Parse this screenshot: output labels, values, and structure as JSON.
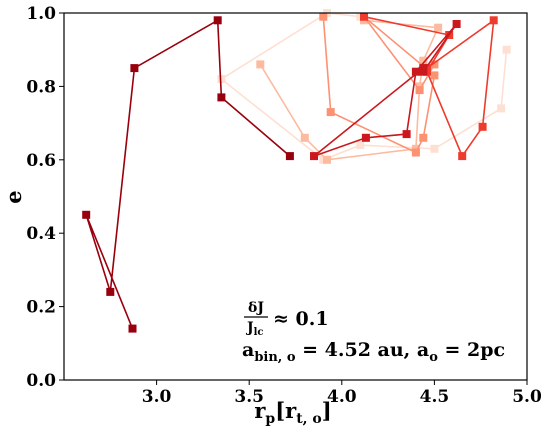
{
  "chart_data": {
    "type": "line",
    "xlabel": "r_p[r_t, o]",
    "ylabel": "e",
    "xlim": [
      2.5,
      5.0
    ],
    "ylim": [
      0.0,
      1.0
    ],
    "x_ticks": [
      "3.0",
      "3.5",
      "4.0",
      "4.5",
      "5.0"
    ],
    "x_tick_values": [
      3.0,
      3.5,
      4.0,
      4.5,
      5.0
    ],
    "y_ticks": [
      "0.0",
      "0.2",
      "0.4",
      "0.6",
      "0.8",
      "1.0"
    ],
    "y_tick_values": [
      0.0,
      0.2,
      0.4,
      0.6,
      0.8,
      1.0
    ],
    "grid": false,
    "marker": "square",
    "annotations": {
      "ratio_numerator": "δJ",
      "ratio_denominator": "J",
      "ratio_denominator_sub": "lc",
      "ratio_rest": "≈ 0.1",
      "a_bin_main": "a",
      "a_bin_sub": "bin, o",
      "a_bin_value": " = 4.52 au, a",
      "a_o_sub": "o",
      "a_o_value": " = 2pc"
    },
    "series": [
      {
        "color": "#fee0d2",
        "x": [
          4.89,
          4.86,
          4.5,
          4.1,
          3.9,
          3.35,
          3.92,
          4.1
        ],
        "y": [
          0.9,
          0.74,
          0.63,
          0.64,
          0.6,
          0.82,
          1.0,
          0.99
        ]
      },
      {
        "color": "#fcbba1",
        "x": [
          3.56,
          3.8,
          3.92,
          4.4,
          4.42,
          4.44,
          4.52,
          4.12
        ],
        "y": [
          0.86,
          0.66,
          0.6,
          0.63,
          0.8,
          0.87,
          0.96,
          0.98
        ]
      },
      {
        "color": "#fc9272",
        "x": [
          3.9,
          3.94,
          4.4,
          4.44,
          4.5,
          4.12,
          4.42,
          4.5
        ],
        "y": [
          0.99,
          0.73,
          0.62,
          0.66,
          0.83,
          0.99,
          0.79,
          0.86
        ]
      },
      {
        "color": "#ef3b2c",
        "x": [
          4.12,
          4.58,
          4.46,
          4.65,
          4.76,
          4.82,
          4.46
        ],
        "y": [
          0.99,
          0.94,
          0.84,
          0.61,
          0.69,
          0.98,
          0.85
        ]
      },
      {
        "color": "#cb181d",
        "x": [
          4.44,
          4.62,
          4.4,
          4.35,
          4.13,
          3.85,
          4.44
        ],
        "y": [
          0.84,
          0.97,
          0.84,
          0.67,
          0.66,
          0.61,
          0.85
        ]
      },
      {
        "color": "#99000d",
        "x": [
          2.87,
          2.62,
          2.75,
          2.88,
          3.33,
          3.35,
          3.72
        ],
        "y": [
          0.14,
          0.45,
          0.24,
          0.85,
          0.98,
          0.77,
          0.61
        ]
      }
    ]
  }
}
